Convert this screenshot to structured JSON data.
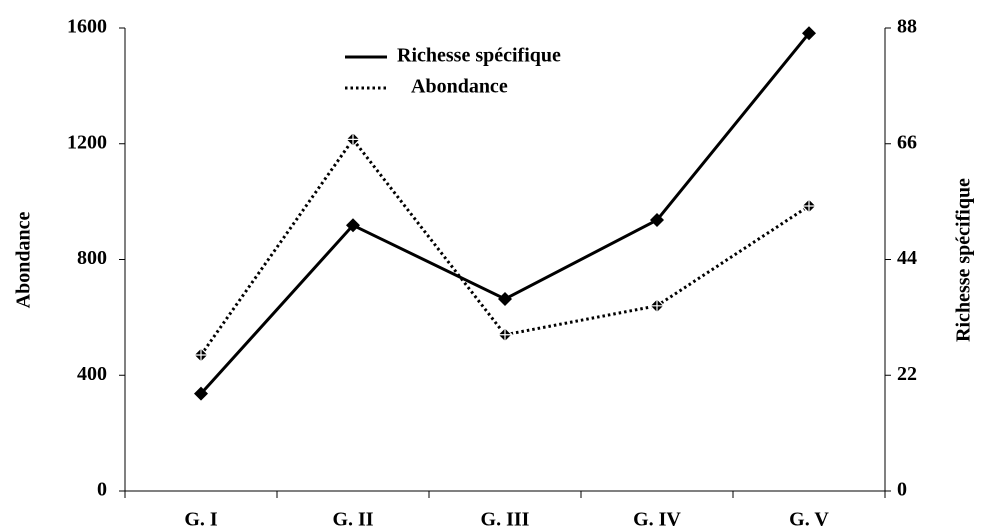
{
  "chart_data": {
    "type": "line",
    "categories": [
      "G. I",
      "G. II",
      "G. III",
      "G. IV",
      "G. V"
    ],
    "ylabel": "Abondance",
    "y2label": "Richesse spécifique",
    "ylim": [
      0,
      1600
    ],
    "yticks": [
      0,
      400,
      800,
      1200,
      1600
    ],
    "y2lim": [
      0,
      88
    ],
    "y2ticks": [
      0,
      22,
      44,
      66,
      88
    ],
    "legend": "top-center",
    "grid": false,
    "series": [
      {
        "name": "Richesse  spécifique",
        "color": "#000000",
        "line_style": "solid",
        "axis": "y2",
        "values": [
          18.5,
          50.5,
          36.5,
          51.5,
          87
        ]
      },
      {
        "name": "Abondance",
        "color": "#000000",
        "line_style": "dotted",
        "axis": "y",
        "values": [
          470,
          1215,
          540,
          640,
          985
        ]
      }
    ]
  }
}
